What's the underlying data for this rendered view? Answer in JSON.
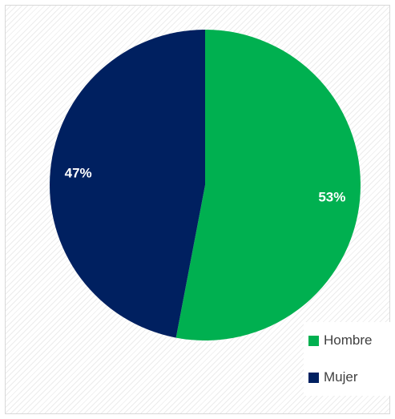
{
  "chart_data": {
    "type": "pie",
    "categories": [
      "Hombre",
      "Mujer"
    ],
    "values": [
      53,
      47
    ],
    "data_labels": [
      "53%",
      "47%"
    ],
    "colors": [
      "#00b050",
      "#002060"
    ],
    "legend_position": "bottom-right",
    "start_angle_deg": 0,
    "direction": "clockwise"
  }
}
